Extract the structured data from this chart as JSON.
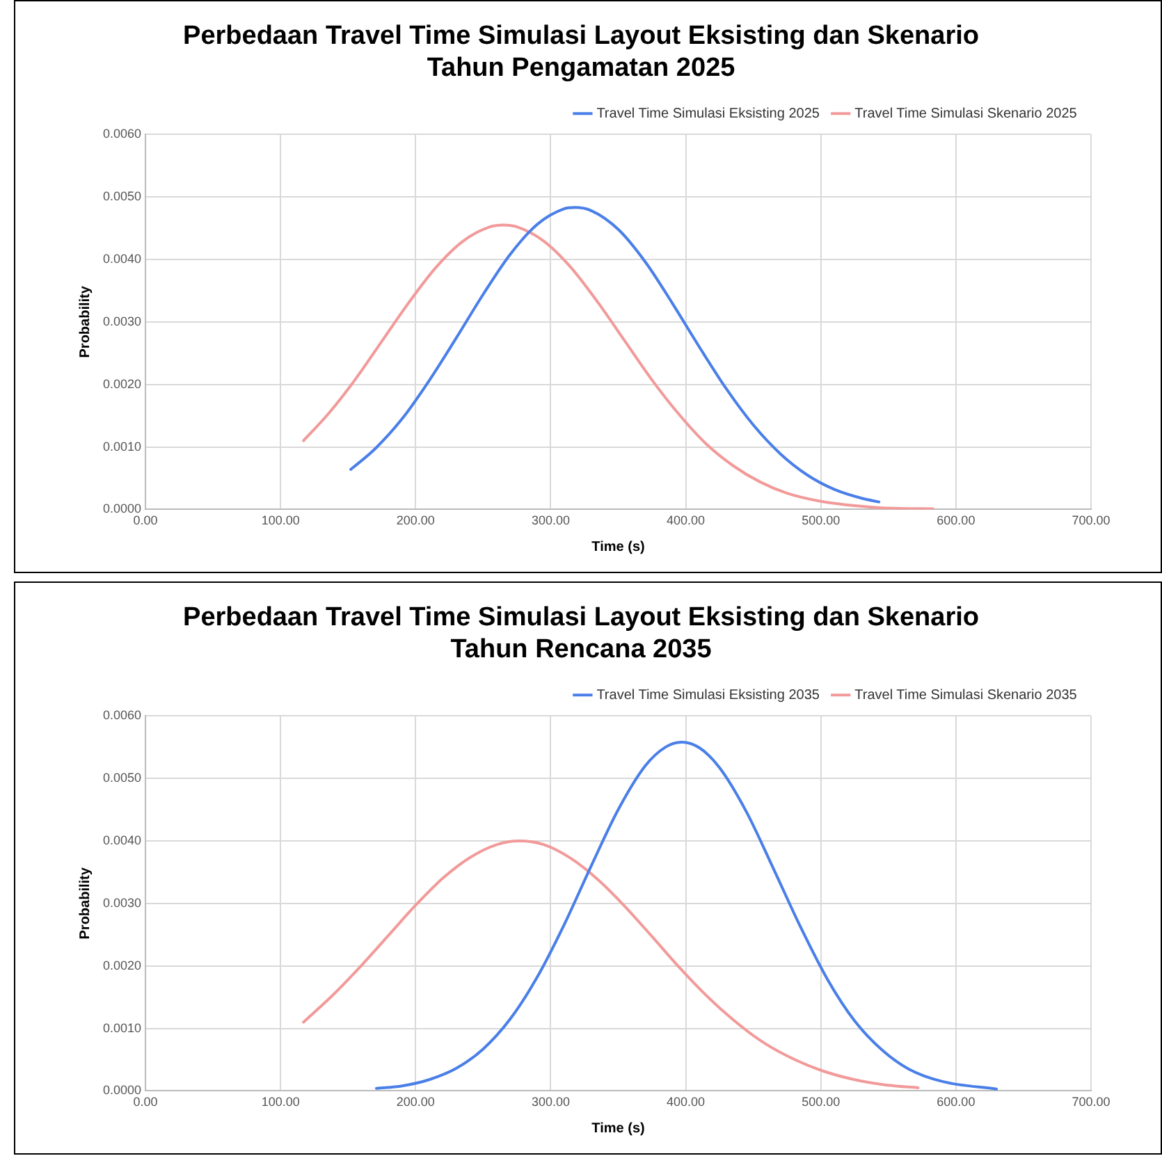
{
  "chart_data": [
    {
      "type": "line",
      "title": "Perbedaan Travel Time Simulasi Layout Eksisting dan Skenario\nTahun Pengamatan 2025",
      "xlabel": "Time (s)",
      "ylabel": "Probability",
      "series": [
        {
          "name": "Travel Time Simulasi Eksisting 2025",
          "color": "#4a7fe8",
          "x": [
            152,
            170,
            190,
            210,
            230,
            250,
            270,
            290,
            310,
            318,
            330,
            350,
            370,
            390,
            410,
            430,
            450,
            470,
            490,
            510,
            530,
            543
          ],
          "values": [
            0.00064,
            0.00097,
            0.00145,
            0.00206,
            0.00274,
            0.00344,
            0.00408,
            0.00456,
            0.00481,
            0.00483,
            0.00478,
            0.00448,
            0.00396,
            0.0033,
            0.0026,
            0.00193,
            0.00135,
            0.00089,
            0.00055,
            0.00032,
            0.00018,
            0.00012
          ]
        },
        {
          "name": "Travel Time Simulasi Skenario 2025",
          "color": "#f29a9a",
          "x": [
            117,
            135,
            155,
            175,
            195,
            215,
            235,
            255,
            265,
            275,
            295,
            315,
            335,
            355,
            375,
            395,
            415,
            435,
            455,
            475,
            500,
            525,
            550,
            583
          ],
          "values": [
            0.0011,
            0.00152,
            0.00207,
            0.00269,
            0.00331,
            0.00387,
            0.00429,
            0.00452,
            0.00455,
            0.00452,
            0.00429,
            0.00387,
            0.00331,
            0.00269,
            0.00207,
            0.00152,
            0.00105,
            0.0007,
            0.00044,
            0.00026,
            0.00013,
            6e-05,
            2e-05,
            1e-05
          ]
        }
      ],
      "xlim": [
        0,
        700
      ],
      "xticks": [
        {
          "value": 0,
          "label": "0.00"
        },
        {
          "value": 100,
          "label": "100.00"
        },
        {
          "value": 200,
          "label": "200.00"
        },
        {
          "value": 300,
          "label": "300.00"
        },
        {
          "value": 400,
          "label": "400.00"
        },
        {
          "value": 500,
          "label": "500.00"
        },
        {
          "value": 600,
          "label": "600.00"
        },
        {
          "value": 700,
          "label": "700.00"
        }
      ],
      "ylim": [
        0,
        0.006
      ],
      "yticks": [
        {
          "value": 0,
          "label": "0.0000"
        },
        {
          "value": 0.001,
          "label": "0.0010"
        },
        {
          "value": 0.002,
          "label": "0.0020"
        },
        {
          "value": 0.003,
          "label": "0.0030"
        },
        {
          "value": 0.004,
          "label": "0.0040"
        },
        {
          "value": 0.005,
          "label": "0.0050"
        },
        {
          "value": 0.006,
          "label": "0.0060"
        }
      ],
      "grid": true,
      "legend": "top right",
      "marker": "none",
      "line_style": "solid"
    },
    {
      "type": "line",
      "title": "Perbedaan Travel Time Simulasi Layout Eksisting dan Skenario\nTahun Rencana 2035",
      "xlabel": "Time (s)",
      "ylabel": "Probability",
      "series": [
        {
          "name": "Travel Time Simulasi Eksisting 2035",
          "color": "#4a7fe8",
          "x": [
            171,
            190,
            210,
            230,
            250,
            270,
            290,
            310,
            330,
            350,
            370,
            385,
            397,
            410,
            425,
            445,
            465,
            485,
            505,
            525,
            545,
            565,
            590,
            630
          ],
          "values": [
            4e-05,
            8e-05,
            0.00018,
            0.00036,
            0.00067,
            0.00115,
            0.00182,
            0.00266,
            0.0036,
            0.0045,
            0.0052,
            0.0055,
            0.00558,
            0.00549,
            0.00517,
            0.00446,
            0.00355,
            0.00262,
            0.00178,
            0.00112,
            0.00066,
            0.00035,
            0.00015,
            3e-05
          ]
        },
        {
          "name": "Travel Time Simulasi Skenario 2035",
          "color": "#f29a9a",
          "x": [
            117,
            140,
            160,
            180,
            200,
            220,
            240,
            260,
            277,
            295,
            315,
            335,
            355,
            375,
            395,
            415,
            435,
            455,
            475,
            500,
            525,
            550,
            572
          ],
          "values": [
            0.0011,
            0.00156,
            0.00201,
            0.00249,
            0.00297,
            0.0034,
            0.00373,
            0.00394,
            0.004,
            0.00394,
            0.00372,
            0.00338,
            0.00295,
            0.00247,
            0.00198,
            0.00153,
            0.00114,
            0.00081,
            0.00056,
            0.00033,
            0.00018,
            9e-05,
            5e-05
          ]
        }
      ],
      "xlim": [
        0,
        700
      ],
      "xticks": [
        {
          "value": 0,
          "label": "0.00"
        },
        {
          "value": 100,
          "label": "100.00"
        },
        {
          "value": 200,
          "label": "200.00"
        },
        {
          "value": 300,
          "label": "300.00"
        },
        {
          "value": 400,
          "label": "400.00"
        },
        {
          "value": 500,
          "label": "500.00"
        },
        {
          "value": 600,
          "label": "600.00"
        },
        {
          "value": 700,
          "label": "700.00"
        }
      ],
      "ylim": [
        0,
        0.006
      ],
      "yticks": [
        {
          "value": 0,
          "label": "0.0000"
        },
        {
          "value": 0.001,
          "label": "0.0010"
        },
        {
          "value": 0.002,
          "label": "0.0020"
        },
        {
          "value": 0.003,
          "label": "0.0030"
        },
        {
          "value": 0.004,
          "label": "0.0040"
        },
        {
          "value": 0.005,
          "label": "0.0050"
        },
        {
          "value": 0.006,
          "label": "0.0060"
        }
      ],
      "grid": true,
      "legend": "top right",
      "marker": "none",
      "line_style": "solid"
    }
  ]
}
